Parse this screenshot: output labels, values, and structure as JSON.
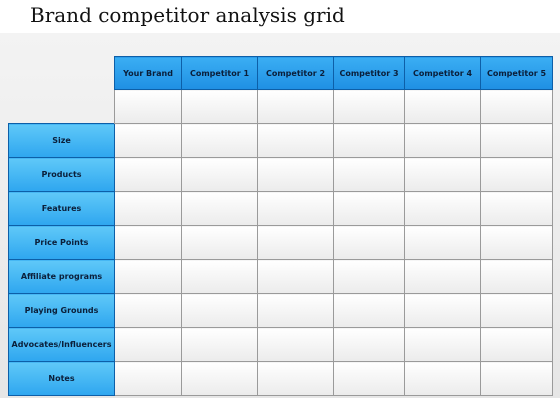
{
  "title": "Brand competitor analysis grid",
  "columns": [
    "Your Brand",
    "Competitor 1",
    "Competitor 2",
    "Competitor 3",
    "Competitor 4",
    "Competitor 5"
  ],
  "rows": [
    "Size",
    "Products",
    "Features",
    "Price Points",
    "Affiliate programs",
    "Playing Grounds",
    "Advocates/Influencers",
    "Notes"
  ],
  "colors": {
    "header_blue": "#1f8fe3",
    "row_blue": "#2ea6ef",
    "cell_fill": "#f4f4f4",
    "panel_grey": "#ececec"
  }
}
